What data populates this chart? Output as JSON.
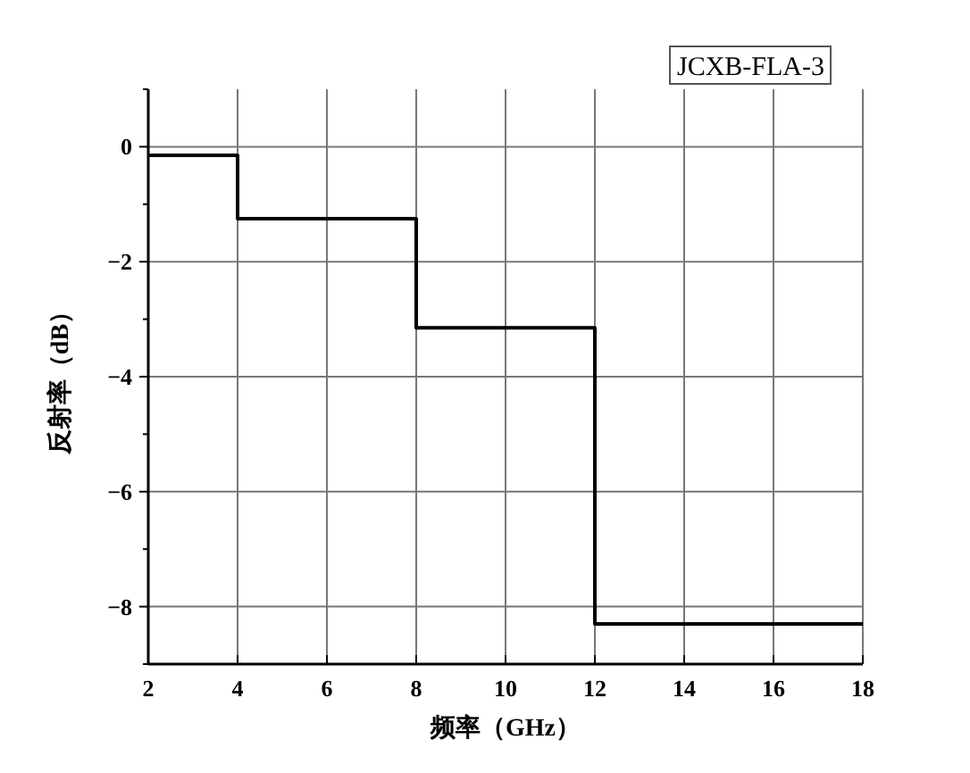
{
  "chart_data": {
    "type": "step",
    "xlabel": "频率（GHz）",
    "ylabel": "反射率（dB）",
    "x": [
      2,
      4,
      8,
      12,
      18
    ],
    "series": [
      {
        "name": "JCXB-FLA-3",
        "color": "#000000",
        "values": [
          -0.15,
          -1.25,
          -3.15,
          -8.3,
          -8.3
        ]
      }
    ],
    "xlim": [
      2,
      18
    ],
    "xticks": [
      2,
      4,
      6,
      8,
      10,
      12,
      14,
      16,
      18
    ],
    "ylim": [
      -9,
      1
    ],
    "yticks": [
      {
        "value": -9,
        "label": null
      },
      -8,
      {
        "value": -7,
        "label": null
      },
      -6,
      {
        "value": -5,
        "label": null
      },
      -4,
      {
        "value": -3,
        "label": null
      },
      -2,
      {
        "value": -1,
        "label": null
      },
      0,
      {
        "value": 1,
        "label": null
      }
    ],
    "grid": true,
    "legend": "top right"
  }
}
